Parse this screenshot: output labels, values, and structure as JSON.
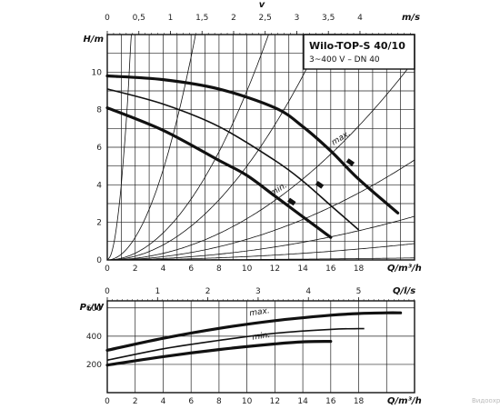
{
  "chart_data": [
    {
      "type": "line",
      "title": "Wilo-TOP-S 40/10",
      "subtitle": "3~400 V – DN 40",
      "xlabel": "Q/m³/h",
      "ylabel": "H/m",
      "top_axis_label": "v",
      "top_axis_unit": "m/s",
      "xlim": [
        0,
        22
      ],
      "ylim": [
        0,
        12
      ],
      "x_ticks": [
        "0",
        "2",
        "4",
        "6",
        "8",
        "10",
        "12",
        "14",
        "16",
        "18"
      ],
      "y_ticks": [
        "0",
        "2",
        "4",
        "6",
        "8",
        "10"
      ],
      "top_ticks": [
        "0",
        "0,5",
        "1",
        "1,5",
        "2",
        "2,5",
        "3",
        "3,5",
        "4"
      ],
      "velocity_per_flow": 0.2211,
      "series": [
        {
          "name": "max.",
          "points": [
            [
              0,
              9.8
            ],
            [
              4,
              9.6
            ],
            [
              8,
              9.1
            ],
            [
              12,
              8.1
            ],
            [
              14,
              7.1
            ],
            [
              16,
              5.8
            ],
            [
              18,
              4.3
            ],
            [
              20.8,
              2.5
            ]
          ]
        },
        {
          "name": "",
          "points": [
            [
              0,
              9.1
            ],
            [
              4,
              8.3
            ],
            [
              8,
              7.1
            ],
            [
              12,
              5.3
            ],
            [
              14,
              4.2
            ],
            [
              16,
              2.9
            ],
            [
              18,
              1.6
            ]
          ]
        },
        {
          "name": "min.",
          "points": [
            [
              0,
              8.1
            ],
            [
              4,
              6.9
            ],
            [
              8,
              5.3
            ],
            [
              10,
              4.5
            ],
            [
              12,
              3.4
            ],
            [
              14,
              2.3
            ],
            [
              16,
              1.2
            ]
          ]
        }
      ],
      "labels": [
        {
          "text": "max.",
          "at": [
            16.2,
            6.1
          ]
        },
        {
          "text": "min.",
          "at": [
            11.8,
            3.4
          ]
        }
      ],
      "markers": [
        {
          "at": [
            17.4,
            5.2
          ]
        },
        {
          "at": [
            15.2,
            4.0
          ]
        },
        {
          "at": [
            13.2,
            3.1
          ]
        }
      ],
      "system_curves": [
        400,
        30,
        9,
        5,
        2.2,
        1.1,
        0.48,
        0.18,
        0.022
      ],
      "grid": true
    },
    {
      "type": "line",
      "xlabel": "Q/m³/h",
      "ylabel": "P₁/W",
      "top_axis_label": "Q/l/s",
      "xlim": [
        0,
        22
      ],
      "ylim": [
        0,
        650
      ],
      "x_ticks": [
        "0",
        "2",
        "4",
        "6",
        "8",
        "10",
        "12",
        "14",
        "16",
        "18"
      ],
      "y_ticks": [
        "200",
        "400",
        "600"
      ],
      "top_ticks": [
        "0",
        "1",
        "2",
        "3",
        "4",
        "5"
      ],
      "series": [
        {
          "name": "max.",
          "points": [
            [
              0,
              300
            ],
            [
              4,
              385
            ],
            [
              8,
              455
            ],
            [
              12,
              510
            ],
            [
              16,
              548
            ],
            [
              18,
              560
            ],
            [
              20,
              565
            ],
            [
              21,
              565
            ]
          ]
        },
        {
          "name": "",
          "points": [
            [
              0,
              230
            ],
            [
              4,
              310
            ],
            [
              8,
              370
            ],
            [
              12,
              420
            ],
            [
              16,
              448
            ],
            [
              18,
              453
            ],
            [
              18.4,
              453
            ]
          ]
        },
        {
          "name": "min.",
          "points": [
            [
              0,
              195
            ],
            [
              4,
              255
            ],
            [
              8,
              305
            ],
            [
              12,
              345
            ],
            [
              14,
              360
            ],
            [
              16,
              363
            ]
          ]
        }
      ],
      "labels": [
        {
          "text": "max.",
          "at": [
            10.2,
            545
          ]
        },
        {
          "text": "min.",
          "at": [
            10.4,
            375
          ]
        }
      ],
      "grid": true
    }
  ],
  "watermark": "Видоохр"
}
